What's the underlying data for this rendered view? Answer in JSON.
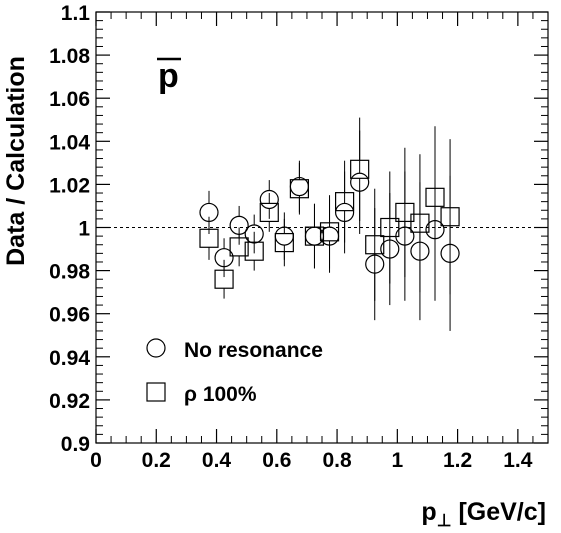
{
  "chart_data": {
    "type": "scatter",
    "panel_label": "p",
    "ylabel": "Data / Calculation",
    "xlabel_main": "p",
    "xlabel_sub": "⊥",
    "xlabel_unit": " [GeV/c]",
    "xlim": [
      0,
      1.5
    ],
    "ylim": [
      0.9,
      1.1
    ],
    "reference_line": 1.0,
    "x_ticks": [
      {
        "value": 0,
        "label": "0"
      },
      {
        "value": 0.2,
        "label": "0.2"
      },
      {
        "value": 0.4,
        "label": "0.4"
      },
      {
        "value": 0.6,
        "label": "0.6"
      },
      {
        "value": 0.8,
        "label": "0.8"
      },
      {
        "value": 1.0,
        "label": "1"
      },
      {
        "value": 1.2,
        "label": "1.2"
      },
      {
        "value": 1.4,
        "label": "1.4"
      }
    ],
    "y_ticks": [
      {
        "value": 0.9,
        "label": "0.9"
      },
      {
        "value": 0.92,
        "label": "0.92"
      },
      {
        "value": 0.94,
        "label": "0.94"
      },
      {
        "value": 0.96,
        "label": "0.96"
      },
      {
        "value": 0.98,
        "label": "0.98"
      },
      {
        "value": 1.0,
        "label": "1"
      },
      {
        "value": 1.02,
        "label": "1.02"
      },
      {
        "value": 1.04,
        "label": "1.04"
      },
      {
        "value": 1.06,
        "label": "1.06"
      },
      {
        "value": 1.08,
        "label": "1.08"
      },
      {
        "value": 1.1,
        "label": "1.1"
      }
    ],
    "series": [
      {
        "name": "No resonance",
        "marker": "circle",
        "points": [
          {
            "x": 0.375,
            "y": 1.007,
            "err": 0.01
          },
          {
            "x": 0.425,
            "y": 0.986,
            "err": 0.009
          },
          {
            "x": 0.475,
            "y": 1.001,
            "err": 0.009
          },
          {
            "x": 0.525,
            "y": 0.997,
            "err": 0.009
          },
          {
            "x": 0.575,
            "y": 1.013,
            "err": 0.009
          },
          {
            "x": 0.625,
            "y": 0.996,
            "err": 0.011
          },
          {
            "x": 0.675,
            "y": 1.019,
            "err": 0.012
          },
          {
            "x": 0.725,
            "y": 0.996,
            "err": 0.015
          },
          {
            "x": 0.775,
            "y": 0.996,
            "err": 0.017
          },
          {
            "x": 0.825,
            "y": 1.007,
            "err": 0.019
          },
          {
            "x": 0.875,
            "y": 1.021,
            "err": 0.024
          },
          {
            "x": 0.925,
            "y": 0.983,
            "err": 0.026
          },
          {
            "x": 0.975,
            "y": 0.99,
            "err": 0.026
          },
          {
            "x": 1.025,
            "y": 0.996,
            "err": 0.03
          },
          {
            "x": 1.075,
            "y": 0.989,
            "err": 0.032
          },
          {
            "x": 1.125,
            "y": 0.999,
            "err": 0.033
          },
          {
            "x": 1.175,
            "y": 0.988,
            "err": 0.036
          }
        ]
      },
      {
        "name": "ρ 100%",
        "marker": "square",
        "points": [
          {
            "x": 0.375,
            "y": 0.995,
            "err": 0.01
          },
          {
            "x": 0.425,
            "y": 0.976,
            "err": 0.009
          },
          {
            "x": 0.475,
            "y": 0.991,
            "err": 0.009
          },
          {
            "x": 0.525,
            "y": 0.989,
            "err": 0.009
          },
          {
            "x": 0.575,
            "y": 1.007,
            "err": 0.009
          },
          {
            "x": 0.625,
            "y": 0.993,
            "err": 0.011
          },
          {
            "x": 0.675,
            "y": 1.018,
            "err": 0.012
          },
          {
            "x": 0.725,
            "y": 0.996,
            "err": 0.015
          },
          {
            "x": 0.775,
            "y": 0.998,
            "err": 0.017
          },
          {
            "x": 0.825,
            "y": 1.012,
            "err": 0.019
          },
          {
            "x": 0.875,
            "y": 1.027,
            "err": 0.024
          },
          {
            "x": 0.925,
            "y": 0.992,
            "err": 0.026
          },
          {
            "x": 0.975,
            "y": 1.0,
            "err": 0.026
          },
          {
            "x": 1.025,
            "y": 1.007,
            "err": 0.03
          },
          {
            "x": 1.075,
            "y": 1.002,
            "err": 0.032
          },
          {
            "x": 1.125,
            "y": 1.014,
            "err": 0.033
          },
          {
            "x": 1.175,
            "y": 1.005,
            "err": 0.036
          }
        ]
      }
    ],
    "legend": {
      "placement": "bottom-left"
    }
  }
}
